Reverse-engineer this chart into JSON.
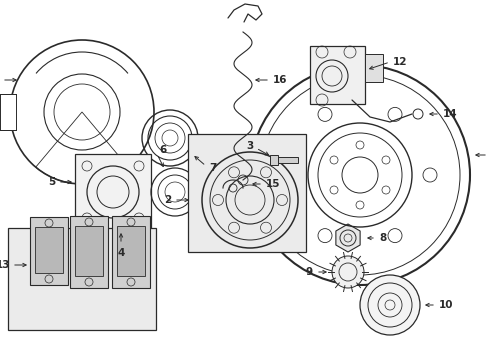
{
  "bg_color": "#ffffff",
  "lc": "#2a2a2a",
  "fig_w": 4.89,
  "fig_h": 3.6,
  "dpi": 100,
  "xlim": [
    0,
    489
  ],
  "ylim": [
    0,
    360
  ]
}
